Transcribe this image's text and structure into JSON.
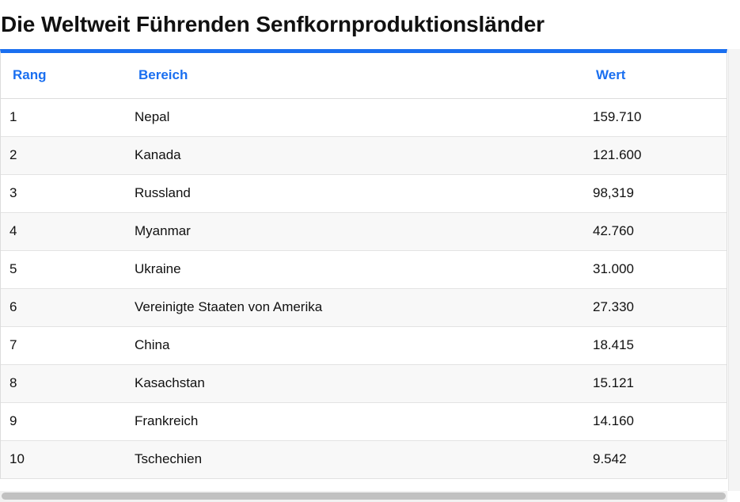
{
  "page": {
    "title": "Die Weltweit Führenden Senfkornproduktionsländer"
  },
  "table": {
    "columns": {
      "rank": "Rang",
      "area": "Bereich",
      "value": "Wert"
    },
    "rows": [
      {
        "rank": "1",
        "area": "Nepal",
        "value": "159.710"
      },
      {
        "rank": "2",
        "area": "Kanada",
        "value": "121.600"
      },
      {
        "rank": "3",
        "area": "Russland",
        "value": "98,319"
      },
      {
        "rank": "4",
        "area": "Myanmar",
        "value": "42.760"
      },
      {
        "rank": "5",
        "area": "Ukraine",
        "value": "31.000"
      },
      {
        "rank": "6",
        "area": "Vereinigte Staaten von Amerika",
        "value": "27.330"
      },
      {
        "rank": "7",
        "area": "China",
        "value": "18.415"
      },
      {
        "rank": "8",
        "area": "Kasachstan",
        "value": "15.121"
      },
      {
        "rank": "9",
        "area": "Frankreich",
        "value": "14.160"
      },
      {
        "rank": "10",
        "area": "Tschechien",
        "value": "9.542"
      }
    ]
  },
  "colors": {
    "accent": "#1a6ff0",
    "row_alt": "#f8f8f8",
    "scroll_thumb": "#c1c1c1"
  }
}
